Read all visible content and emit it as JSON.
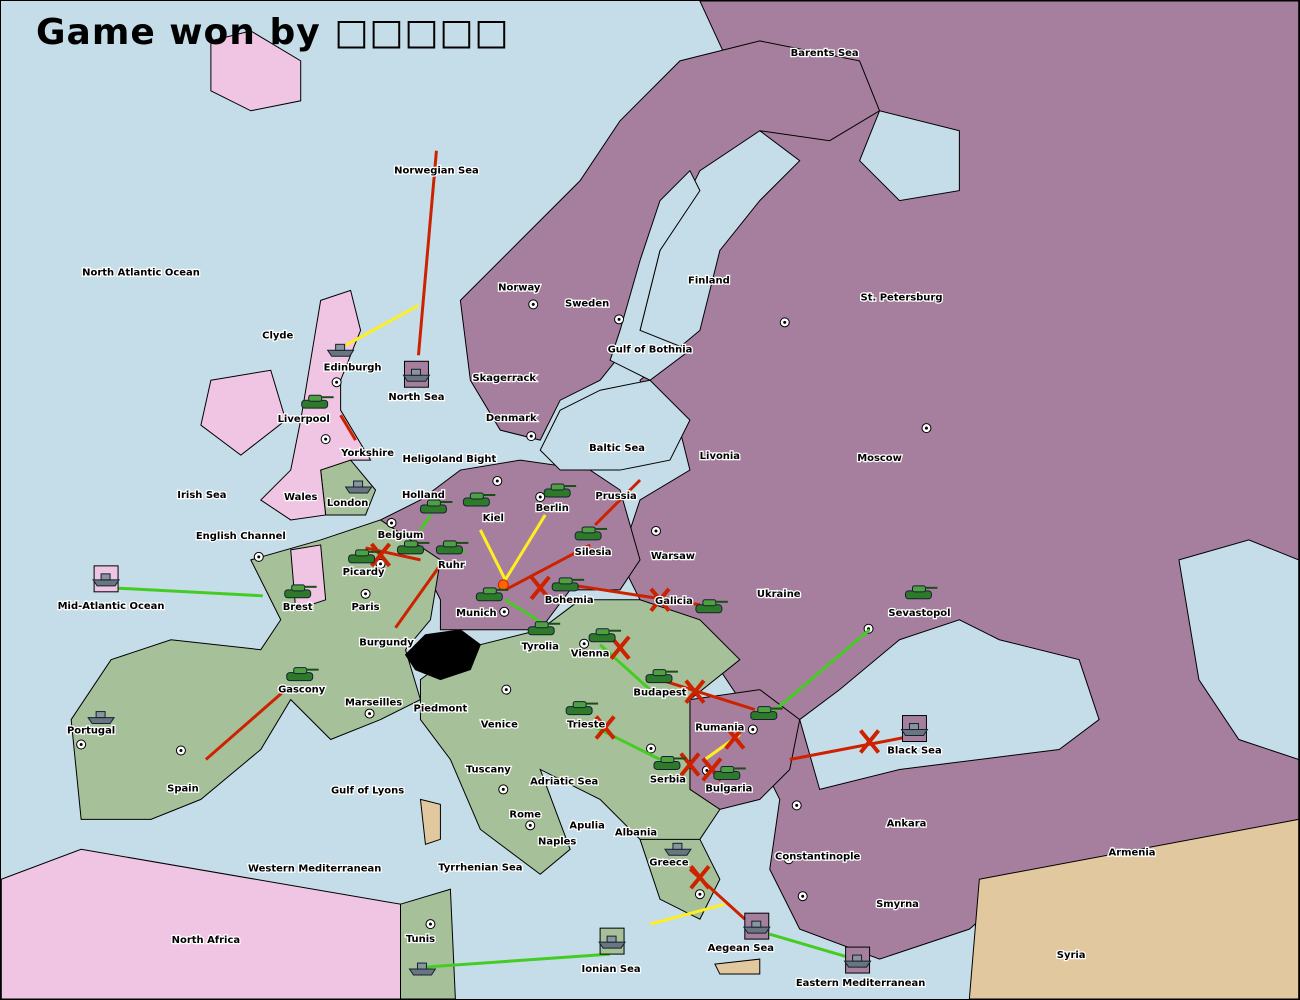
{
  "title": "Game won by □□□□□",
  "colors": {
    "sea": "#c5dde8",
    "power_purple": "#a77f9e",
    "power_green": "#a6c19a",
    "power_pink": "#f0c4e3",
    "neutral_tan": "#e2c89e",
    "impassable": "#000000",
    "order_move": "#cc2200",
    "order_support": "#44cc22",
    "order_convoy": "#ffee22"
  },
  "provinces": [
    "Barents Sea",
    "Norwegian Sea",
    "North Atlantic Ocean",
    "Norway",
    "Sweden",
    "Finland",
    "St. Petersburg",
    "Clyde",
    "Gulf of Bothnia",
    "Edinburgh",
    "Skagerrack",
    "North Sea",
    "Denmark",
    "Liverpool",
    "Baltic Sea",
    "Livonia",
    "Moscow",
    "Yorkshire",
    "Heligoland Bight",
    "Irish Sea",
    "Wales",
    "Prussia",
    "Holland",
    "London",
    "Berlin",
    "Kiel",
    "English Channel",
    "Belgium",
    "Silesia",
    "Warsaw",
    "Picardy",
    "Ruhr",
    "Ukraine",
    "Mid-Atlantic Ocean",
    "Brest",
    "Paris",
    "Bohemia",
    "Galicia",
    "Sevastopol",
    "Munich",
    "Burgundy",
    "Tyrolia",
    "Vienna",
    "Gascony",
    "Budapest",
    "Marseilles",
    "Piedmont",
    "Venice",
    "Rumania",
    "Portugal",
    "Trieste",
    "Black Sea",
    "Tuscany",
    "Serbia",
    "Adriatic Sea",
    "Spain",
    "Gulf of Lyons",
    "Bulgaria",
    "Rome",
    "Apulia",
    "Ankara",
    "Albania",
    "Naples",
    "Armenia",
    "Constantinople",
    "Greece",
    "Western Mediterranean",
    "Tyrrhenian Sea",
    "Smyrna",
    "North Africa",
    "Tunis",
    "Aegean Sea",
    "Syria",
    "Ionian Sea",
    "Eastern Mediterranean"
  ],
  "unit_icons": {
    "army": "tank-icon",
    "fleet": "battleship-icon",
    "dislodged": "explosion-icon",
    "failed_order": "red-x-icon"
  }
}
